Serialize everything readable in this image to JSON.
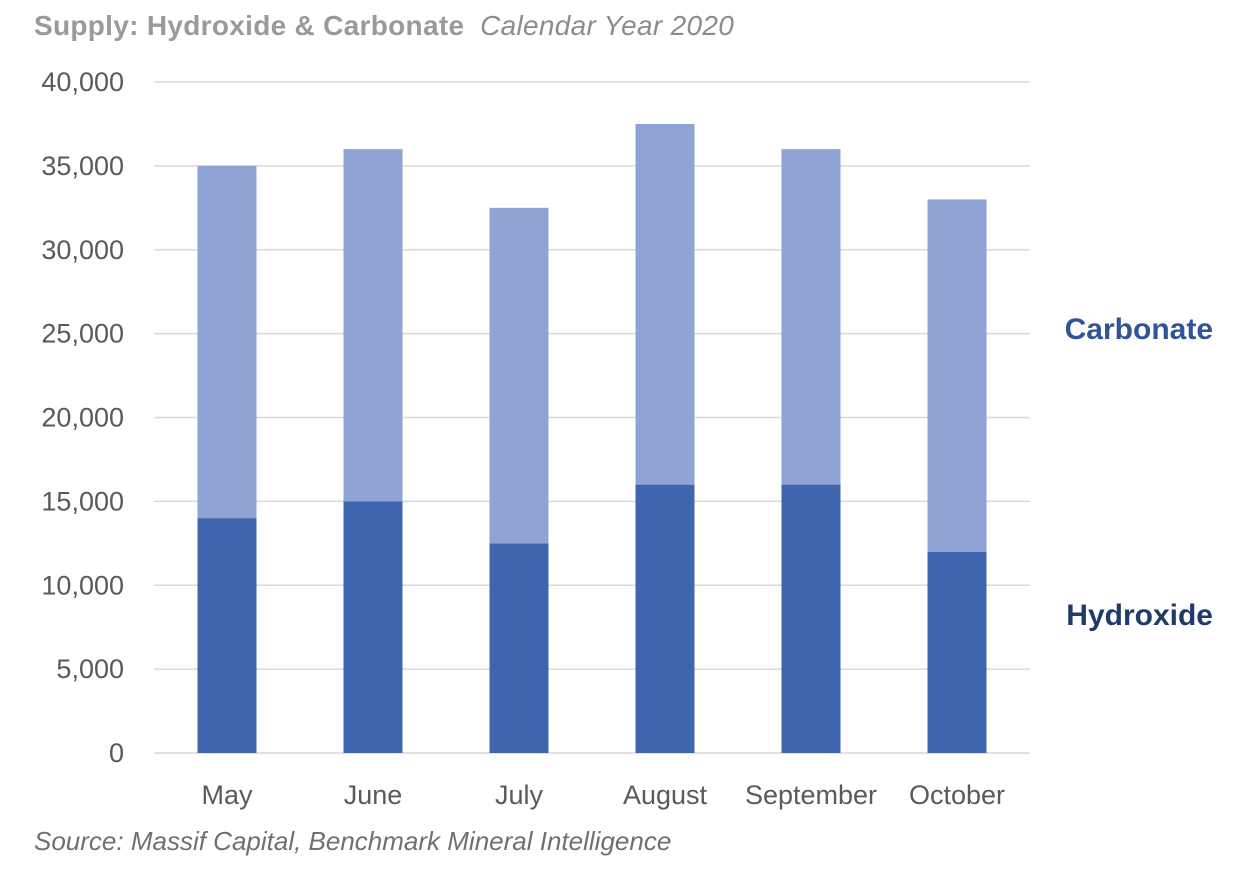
{
  "header": {
    "title_main": "Supply: Hydroxide & Carbonate",
    "title_sub": "Calendar Year 2020"
  },
  "source": "Source: Massif Capital, Benchmark Mineral Intelligence",
  "chart_data": {
    "type": "bar",
    "stacked": true,
    "categories": [
      "May",
      "June",
      "July",
      "August",
      "September",
      "October"
    ],
    "series": [
      {
        "name": "Hydroxide",
        "values": [
          14000,
          15000,
          12500,
          16000,
          16000,
          12000
        ],
        "color": "#3e65ad"
      },
      {
        "name": "Carbonate",
        "values": [
          21000,
          21000,
          20000,
          21500,
          20000,
          21000
        ],
        "color": "#8fa4d4"
      }
    ],
    "ylim": [
      0,
      40000
    ],
    "yticks": [
      0,
      5000,
      10000,
      15000,
      20000,
      25000,
      30000,
      35000,
      40000
    ],
    "ytick_labels": [
      "0",
      "5,000",
      "10,000",
      "15,000",
      "20,000",
      "25,000",
      "30,000",
      "35,000",
      "40,000"
    ],
    "grid": true,
    "legend": {
      "placement": "right",
      "label_color": "#2f5596",
      "hydroxide_label_color": "#203a6a"
    },
    "xlabel": "",
    "ylabel": ""
  }
}
